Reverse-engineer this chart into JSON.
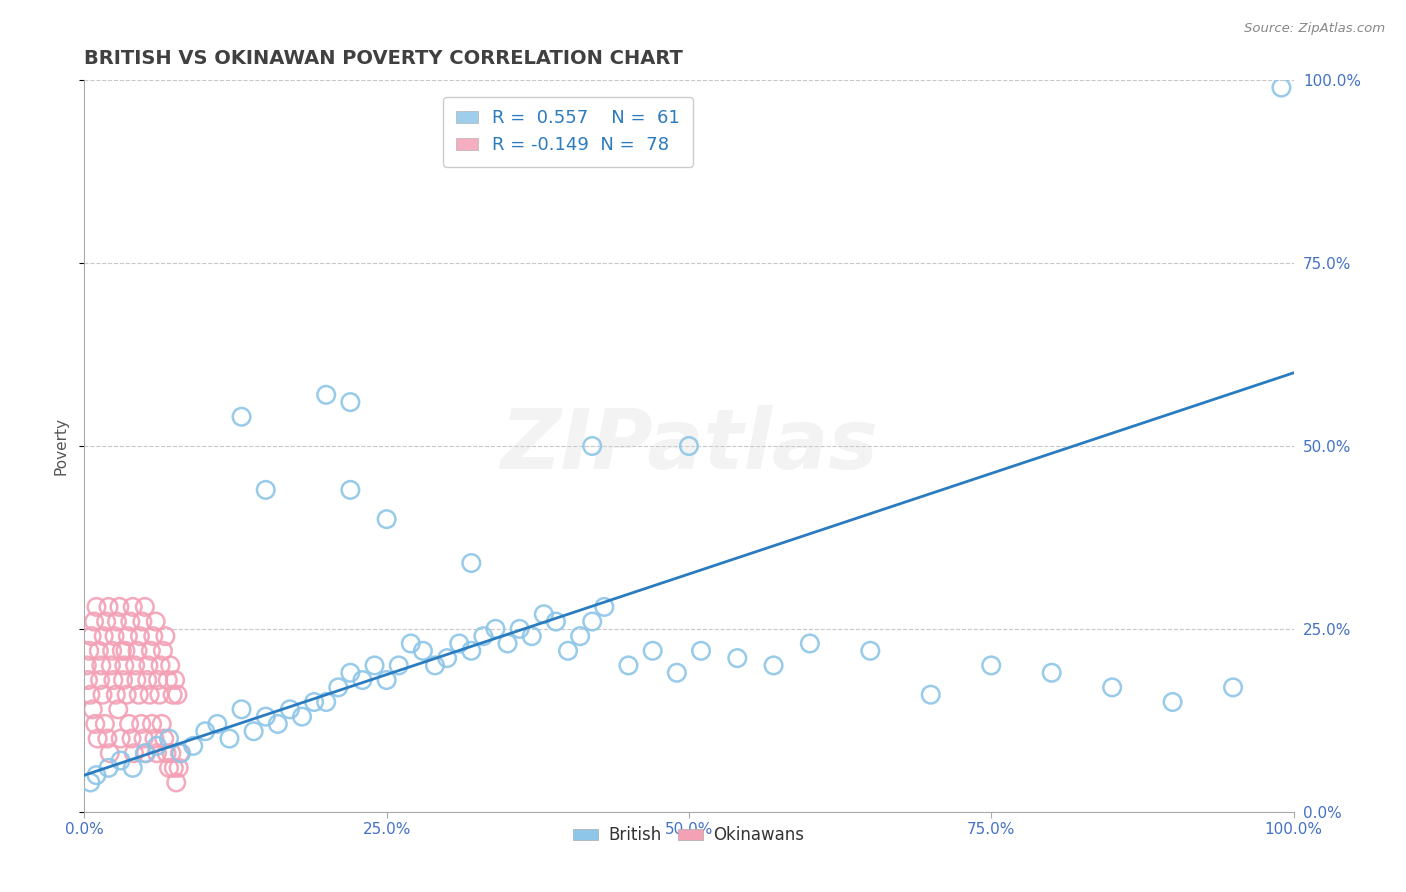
{
  "title": "BRITISH VS OKINAWAN POVERTY CORRELATION CHART",
  "source": "Source: ZipAtlas.com",
  "ylabel": "Poverty",
  "xlim": [
    0,
    1
  ],
  "ylim": [
    0,
    1
  ],
  "xticks": [
    0,
    0.25,
    0.5,
    0.75,
    1.0
  ],
  "yticks": [
    0.0,
    0.25,
    0.5,
    0.75,
    1.0
  ],
  "xticklabels": [
    "0.0%",
    "25.0%",
    "50.0%",
    "75.0%",
    "100.0%"
  ],
  "yticklabels_right": [
    "0.0%",
    "25.0%",
    "50.0%",
    "75.0%",
    "100.0%"
  ],
  "british_color": "#8dc6e8",
  "okinawan_color": "#f4a0b5",
  "trend_color_british": "#2b7bbf",
  "british_R": 0.557,
  "british_N": 61,
  "okinawan_R": -0.149,
  "okinawan_N": 78,
  "legend_label_british": "British",
  "legend_label_okinawan": "Okinawans",
  "watermark": "ZIPatlas",
  "title_color": "#404040",
  "title_fontsize": 14,
  "axis_label_color": "#555555",
  "tick_color": "#4472c4",
  "grid_color": "#c8c8c8",
  "source_color": "#888888",
  "trend_x0": 0.0,
  "trend_y0": 0.05,
  "trend_x1": 1.0,
  "trend_y1": 0.6,
  "british_x": [
    0.005,
    0.01,
    0.02,
    0.03,
    0.04,
    0.05,
    0.06,
    0.07,
    0.08,
    0.09,
    0.1,
    0.11,
    0.12,
    0.13,
    0.14,
    0.15,
    0.16,
    0.17,
    0.18,
    0.19,
    0.2,
    0.21,
    0.22,
    0.23,
    0.24,
    0.25,
    0.26,
    0.27,
    0.28,
    0.29,
    0.3,
    0.31,
    0.32,
    0.33,
    0.34,
    0.35,
    0.36,
    0.37,
    0.38,
    0.39,
    0.4,
    0.41,
    0.42,
    0.43,
    0.45,
    0.47,
    0.49,
    0.51,
    0.54,
    0.57,
    0.6,
    0.65,
    0.7,
    0.75,
    0.8,
    0.85,
    0.9,
    0.95,
    0.99,
    0.15,
    0.22
  ],
  "british_y": [
    0.04,
    0.05,
    0.06,
    0.07,
    0.06,
    0.08,
    0.09,
    0.1,
    0.08,
    0.09,
    0.11,
    0.12,
    0.1,
    0.14,
    0.11,
    0.13,
    0.12,
    0.14,
    0.13,
    0.15,
    0.15,
    0.17,
    0.19,
    0.18,
    0.2,
    0.18,
    0.2,
    0.23,
    0.22,
    0.2,
    0.21,
    0.23,
    0.22,
    0.24,
    0.25,
    0.23,
    0.25,
    0.24,
    0.27,
    0.26,
    0.22,
    0.24,
    0.26,
    0.28,
    0.2,
    0.22,
    0.19,
    0.22,
    0.21,
    0.2,
    0.23,
    0.22,
    0.16,
    0.2,
    0.19,
    0.17,
    0.15,
    0.17,
    0.99,
    0.44,
    0.56
  ],
  "british_x_outliers": [
    0.13,
    0.2,
    0.22,
    0.25,
    0.32,
    0.42,
    0.5
  ],
  "british_y_outliers": [
    0.54,
    0.57,
    0.44,
    0.4,
    0.34,
    0.5,
    0.5
  ],
  "okinawan_x": [
    0.002,
    0.003,
    0.004,
    0.005,
    0.006,
    0.007,
    0.008,
    0.009,
    0.01,
    0.011,
    0.012,
    0.013,
    0.014,
    0.015,
    0.016,
    0.017,
    0.018,
    0.019,
    0.02,
    0.021,
    0.022,
    0.023,
    0.024,
    0.025,
    0.026,
    0.027,
    0.028,
    0.029,
    0.03,
    0.031,
    0.032,
    0.033,
    0.034,
    0.035,
    0.036,
    0.037,
    0.038,
    0.039,
    0.04,
    0.041,
    0.042,
    0.043,
    0.044,
    0.045,
    0.046,
    0.047,
    0.048,
    0.049,
    0.05,
    0.051,
    0.052,
    0.053,
    0.054,
    0.055,
    0.056,
    0.057,
    0.058,
    0.059,
    0.06,
    0.061,
    0.062,
    0.063,
    0.064,
    0.065,
    0.066,
    0.067,
    0.068,
    0.069,
    0.07,
    0.071,
    0.072,
    0.073,
    0.074,
    0.075,
    0.076,
    0.077,
    0.078,
    0.079
  ],
  "okinawan_y": [
    0.2,
    0.18,
    0.22,
    0.16,
    0.24,
    0.14,
    0.26,
    0.12,
    0.28,
    0.1,
    0.22,
    0.18,
    0.2,
    0.16,
    0.24,
    0.12,
    0.26,
    0.1,
    0.28,
    0.08,
    0.2,
    0.22,
    0.18,
    0.24,
    0.16,
    0.26,
    0.14,
    0.28,
    0.1,
    0.22,
    0.18,
    0.2,
    0.22,
    0.16,
    0.24,
    0.12,
    0.26,
    0.1,
    0.28,
    0.08,
    0.2,
    0.18,
    0.22,
    0.16,
    0.24,
    0.12,
    0.26,
    0.1,
    0.28,
    0.08,
    0.18,
    0.2,
    0.16,
    0.22,
    0.12,
    0.24,
    0.1,
    0.26,
    0.08,
    0.18,
    0.16,
    0.2,
    0.12,
    0.22,
    0.1,
    0.24,
    0.08,
    0.18,
    0.06,
    0.2,
    0.08,
    0.16,
    0.06,
    0.18,
    0.04,
    0.16,
    0.06,
    0.08
  ]
}
